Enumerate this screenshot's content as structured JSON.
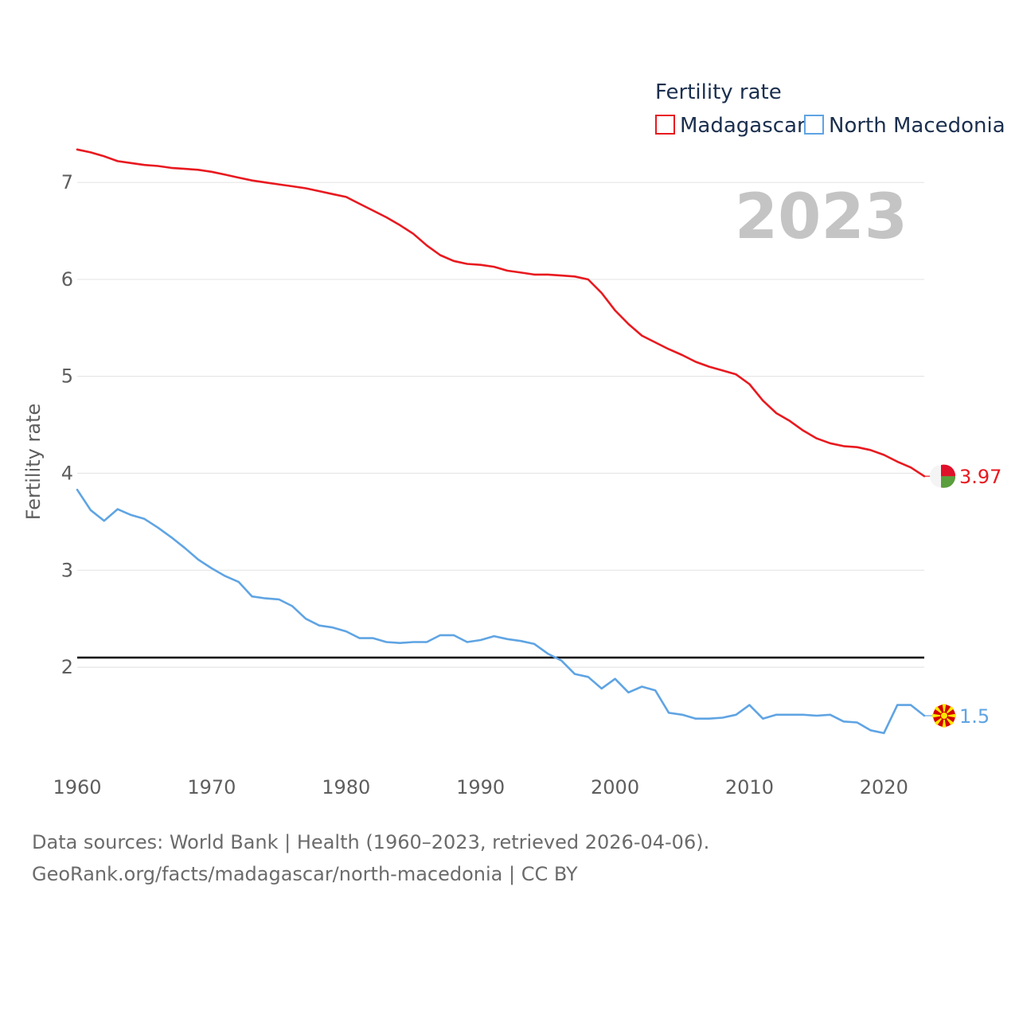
{
  "chart_data": {
    "type": "line",
    "legend_title": "Fertility rate",
    "ylabel": "Fertility rate",
    "xlabel": "",
    "year_stamp": "2023",
    "ylim": [
      0.95,
      7.65
    ],
    "xlim": [
      1960,
      2023
    ],
    "y_ticks": [
      2,
      3,
      4,
      5,
      6,
      7
    ],
    "x_ticks": [
      1960,
      1970,
      1980,
      1990,
      2000,
      2010,
      2020
    ],
    "reference_line": 2.1,
    "series": [
      {
        "name": "Madagascar",
        "color": "#e8191f",
        "end_label": "3.97",
        "flag": "madagascar-flag",
        "x": [
          1960,
          1961,
          1962,
          1963,
          1964,
          1965,
          1966,
          1967,
          1968,
          1969,
          1970,
          1971,
          1972,
          1973,
          1974,
          1975,
          1976,
          1977,
          1978,
          1979,
          1980,
          1981,
          1982,
          1983,
          1984,
          1985,
          1986,
          1987,
          1988,
          1989,
          1990,
          1991,
          1992,
          1993,
          1994,
          1995,
          1996,
          1997,
          1998,
          1999,
          2000,
          2001,
          2002,
          2003,
          2004,
          2005,
          2006,
          2007,
          2008,
          2009,
          2010,
          2011,
          2012,
          2013,
          2014,
          2015,
          2016,
          2017,
          2018,
          2019,
          2020,
          2021,
          2022,
          2023
        ],
        "values": [
          7.34,
          7.31,
          7.27,
          7.22,
          7.2,
          7.18,
          7.17,
          7.15,
          7.14,
          7.13,
          7.11,
          7.08,
          7.05,
          7.02,
          7.0,
          6.98,
          6.96,
          6.94,
          6.91,
          6.88,
          6.85,
          6.78,
          6.71,
          6.64,
          6.56,
          6.47,
          6.35,
          6.25,
          6.19,
          6.16,
          6.15,
          6.13,
          6.09,
          6.07,
          6.05,
          6.05,
          6.04,
          6.03,
          6.0,
          5.86,
          5.68,
          5.54,
          5.42,
          5.35,
          5.28,
          5.22,
          5.15,
          5.1,
          5.06,
          5.02,
          4.92,
          4.75,
          4.62,
          4.54,
          4.44,
          4.36,
          4.31,
          4.28,
          4.27,
          4.24,
          4.19,
          4.12,
          4.06,
          3.97
        ]
      },
      {
        "name": "North Macedonia",
        "color": "#5fa4e3",
        "end_label": "1.5",
        "flag": "north-macedonia-flag",
        "x": [
          1960,
          1961,
          1962,
          1963,
          1964,
          1965,
          1966,
          1967,
          1968,
          1969,
          1970,
          1971,
          1972,
          1973,
          1974,
          1975,
          1976,
          1977,
          1978,
          1979,
          1980,
          1981,
          1982,
          1983,
          1984,
          1985,
          1986,
          1987,
          1988,
          1989,
          1990,
          1991,
          1992,
          1993,
          1994,
          1995,
          1996,
          1997,
          1998,
          1999,
          2000,
          2001,
          2002,
          2003,
          2004,
          2005,
          2006,
          2007,
          2008,
          2009,
          2010,
          2011,
          2012,
          2013,
          2014,
          2015,
          2016,
          2017,
          2018,
          2019,
          2020,
          2021,
          2022,
          2023
        ],
        "values": [
          3.83,
          3.62,
          3.51,
          3.63,
          3.57,
          3.53,
          3.44,
          3.34,
          3.23,
          3.11,
          3.02,
          2.94,
          2.88,
          2.73,
          2.71,
          2.7,
          2.63,
          2.5,
          2.43,
          2.41,
          2.37,
          2.3,
          2.3,
          2.26,
          2.25,
          2.26,
          2.26,
          2.33,
          2.33,
          2.26,
          2.28,
          2.32,
          2.29,
          2.27,
          2.24,
          2.14,
          2.07,
          1.93,
          1.9,
          1.78,
          1.88,
          1.74,
          1.8,
          1.76,
          1.53,
          1.51,
          1.47,
          1.47,
          1.48,
          1.51,
          1.61,
          1.47,
          1.51,
          1.51,
          1.51,
          1.5,
          1.51,
          1.44,
          1.43,
          1.35,
          1.32,
          1.61,
          1.61,
          1.5
        ]
      }
    ]
  },
  "source": {
    "line1": "Data sources: World Bank | Health (1960–2023, retrieved 2026-04-06).",
    "line2": "GeoRank.org/facts/madagascar/north-macedonia | CC BY"
  }
}
